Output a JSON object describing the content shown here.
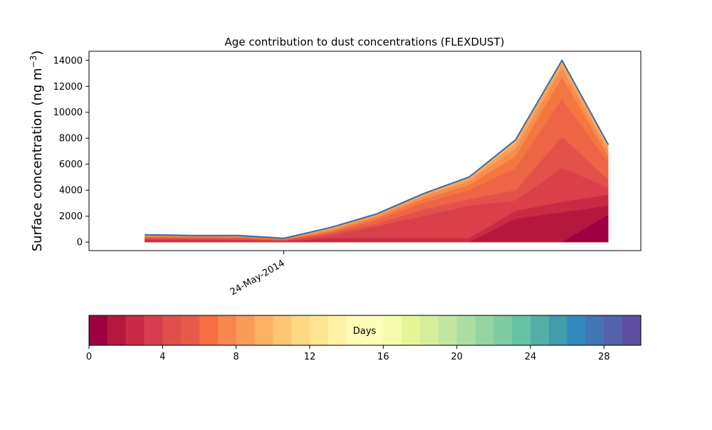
{
  "chart_data": {
    "type": "area",
    "title": "Age contribution to dust concentrations (FLEXDUST)",
    "ylabel": "Surface concentration (ng m",
    "ylabel_sup": "−3",
    "ylabel_close": ")",
    "xlabel": "",
    "ylim": [
      -650,
      14700
    ],
    "yticks": [
      0,
      2000,
      4000,
      6000,
      8000,
      10000,
      12000,
      14000
    ],
    "ytick_labels": [
      "0",
      "2000",
      "4000",
      "6000",
      "8000",
      "10000",
      "12000",
      "14000"
    ],
    "x_ticks": [
      {
        "pos": 3,
        "label": "24-May-2014"
      }
    ],
    "xlim": [
      -1.2,
      10.7
    ],
    "x": [
      0,
      1,
      2,
      3,
      4,
      5,
      6,
      7,
      8,
      9,
      10
    ],
    "total_line_color": "#3b6aa0",
    "stack_layers_cumulative": [
      [
        0,
        0,
        0,
        0,
        0,
        0,
        0,
        0,
        0,
        0,
        2100
      ],
      [
        0,
        0,
        0,
        0,
        0,
        0,
        0,
        0,
        1800,
        2300,
        2800
      ],
      [
        150,
        130,
        110,
        60,
        300,
        300,
        300,
        300,
        2400,
        3100,
        3650
      ],
      [
        250,
        220,
        200,
        120,
        500,
        1200,
        2000,
        2800,
        3200,
        5700,
        4200
      ],
      [
        320,
        300,
        280,
        160,
        650,
        1400,
        2500,
        3300,
        4000,
        8100,
        4800
      ],
      [
        380,
        360,
        340,
        200,
        750,
        1700,
        3000,
        4000,
        5700,
        11000,
        6100
      ],
      [
        440,
        420,
        400,
        230,
        850,
        1850,
        3300,
        4400,
        6600,
        12700,
        6600
      ],
      [
        490,
        470,
        450,
        250,
        950,
        2000,
        3500,
        4700,
        7200,
        13400,
        7000
      ],
      [
        540,
        500,
        490,
        270,
        1050,
        2100,
        3650,
        4900,
        7600,
        13800,
        7300
      ],
      [
        560,
        510,
        510,
        290,
        1100,
        2150,
        3700,
        5000,
        7800,
        13950,
        7450
      ],
      [
        570,
        520,
        520,
        300,
        1120,
        2170,
        3720,
        5020,
        7880,
        14000,
        7500
      ]
    ],
    "layer_colors": [
      "#9e0142",
      "#b5183f",
      "#c92a44",
      "#d9404a",
      "#e3514b",
      "#ed6446",
      "#f4773f",
      "#f88d4e",
      "#fba05b",
      "#fdb365",
      "#fdbf6f"
    ],
    "colorbar": {
      "label": "Days",
      "min": 0,
      "max": 30,
      "ticks": [
        0,
        4,
        8,
        12,
        16,
        20,
        24,
        28
      ],
      "tick_labels": [
        "0",
        "4",
        "8",
        "12",
        "16",
        "20",
        "24",
        "28"
      ],
      "colors": [
        "#9e0142",
        "#b5183f",
        "#c92a44",
        "#d53e4f",
        "#e0504a",
        "#e65b48",
        "#f46d43",
        "#f8864f",
        "#fa9b58",
        "#fdb163",
        "#fdc574",
        "#fed884",
        "#fee593",
        "#fff2a7",
        "#fffbb8",
        "#fbfdb9",
        "#f4faae",
        "#e6f598",
        "#d6ee9b",
        "#c0e6a0",
        "#abdda4",
        "#94d4a4",
        "#7ecba4",
        "#66c2a5",
        "#55afa7",
        "#429cab",
        "#3288bd",
        "#4175b4",
        "#5362aa",
        "#5e4fa2"
      ]
    }
  }
}
